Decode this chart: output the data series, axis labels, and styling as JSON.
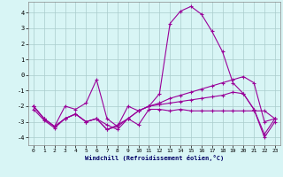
{
  "x": [
    0,
    1,
    2,
    3,
    4,
    5,
    6,
    7,
    8,
    9,
    10,
    11,
    12,
    13,
    14,
    15,
    16,
    17,
    18,
    19,
    20,
    21,
    22,
    23
  ],
  "line1": [
    -2.0,
    -2.8,
    -3.3,
    -2.0,
    -2.2,
    -1.8,
    -0.3,
    -2.8,
    -3.3,
    -2.0,
    -2.3,
    -2.0,
    -1.2,
    3.3,
    4.1,
    4.4,
    3.9,
    2.8,
    1.5,
    -0.5,
    -1.2,
    -2.2,
    -3.8,
    -2.8
  ],
  "line2": [
    -2.2,
    -2.9,
    -3.4,
    -2.8,
    -2.5,
    -3.0,
    -2.8,
    -3.2,
    -3.5,
    -2.8,
    -3.2,
    -2.2,
    -2.2,
    -2.3,
    -2.2,
    -2.3,
    -2.3,
    -2.3,
    -2.3,
    -2.3,
    -2.3,
    -2.3,
    -2.3,
    -2.8
  ],
  "line3": [
    -2.0,
    -2.8,
    -3.3,
    -2.8,
    -2.5,
    -3.0,
    -2.8,
    -3.5,
    -3.3,
    -2.8,
    -2.3,
    -2.0,
    -1.8,
    -1.5,
    -1.3,
    -1.1,
    -0.9,
    -0.7,
    -0.5,
    -0.3,
    -0.1,
    -0.5,
    -3.0,
    -2.8
  ],
  "line4": [
    -2.0,
    -2.8,
    -3.3,
    -2.8,
    -2.5,
    -3.0,
    -2.8,
    -3.5,
    -3.2,
    -2.8,
    -2.3,
    -2.0,
    -1.9,
    -1.8,
    -1.7,
    -1.6,
    -1.5,
    -1.4,
    -1.3,
    -1.1,
    -1.2,
    -2.2,
    -4.0,
    -3.0
  ],
  "bg_color": "#d8f5f5",
  "line_color": "#990099",
  "grid_color": "#aacccc",
  "xlabel": "Windchill (Refroidissement éolien,°C)",
  "ylim": [
    -4.5,
    4.7
  ],
  "xlim": [
    -0.5,
    23.5
  ],
  "yticks": [
    -4,
    -3,
    -2,
    -1,
    0,
    1,
    2,
    3,
    4
  ],
  "xticks": [
    0,
    1,
    2,
    3,
    4,
    5,
    6,
    7,
    8,
    9,
    10,
    11,
    12,
    13,
    14,
    15,
    16,
    17,
    18,
    19,
    20,
    21,
    22,
    23
  ],
  "font": "monospace"
}
